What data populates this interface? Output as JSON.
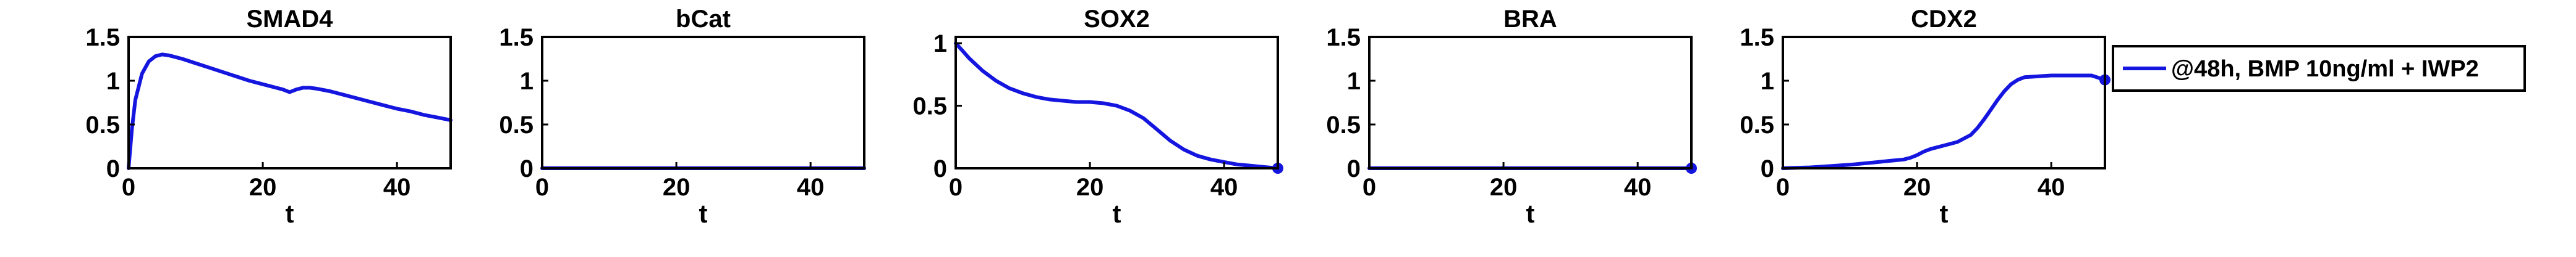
{
  "chart_data": {
    "type": "line",
    "legend": {
      "label": "@48h, BMP 10ng/ml + IWP2",
      "placement": "right",
      "color": "#1515e0"
    },
    "series_color": "#1515e0",
    "grid": false,
    "panels": [
      {
        "title": "SMAD4",
        "xlabel": "t",
        "xlim": [
          0,
          48
        ],
        "ylim": [
          0,
          1.5
        ],
        "xticks": [
          0,
          20,
          40
        ],
        "yticks": [
          0,
          0.5,
          1,
          1.5
        ],
        "x": [
          0,
          0.5,
          1,
          2,
          3,
          4,
          5,
          6,
          8,
          10,
          12,
          14,
          16,
          18,
          20,
          22,
          23,
          24,
          25,
          26,
          27,
          28,
          30,
          32,
          34,
          36,
          38,
          40,
          42,
          44,
          46,
          48
        ],
        "y": [
          0,
          0.45,
          0.78,
          1.08,
          1.22,
          1.28,
          1.3,
          1.29,
          1.25,
          1.2,
          1.15,
          1.1,
          1.05,
          1.0,
          0.96,
          0.92,
          0.9,
          0.87,
          0.9,
          0.92,
          0.92,
          0.91,
          0.88,
          0.84,
          0.8,
          0.76,
          0.72,
          0.68,
          0.65,
          0.61,
          0.58,
          0.55
        ],
        "endpoint_marker": false
      },
      {
        "title": "bCat",
        "xlabel": "t",
        "xlim": [
          0,
          48
        ],
        "ylim": [
          0,
          1.5
        ],
        "xticks": [
          0,
          20,
          40
        ],
        "yticks": [
          0,
          0.5,
          1,
          1.5
        ],
        "x": [
          0,
          48
        ],
        "y": [
          0,
          0
        ],
        "endpoint_marker": false
      },
      {
        "title": "SOX2",
        "xlabel": "t",
        "xlim": [
          0,
          48
        ],
        "ylim": [
          0,
          1.05
        ],
        "xticks": [
          0,
          20,
          40
        ],
        "yticks": [
          0,
          0.5,
          1
        ],
        "x": [
          0,
          1,
          2,
          4,
          6,
          8,
          10,
          12,
          14,
          16,
          18,
          20,
          22,
          24,
          26,
          28,
          30,
          32,
          34,
          36,
          38,
          40,
          42,
          44,
          46,
          48
        ],
        "y": [
          1.0,
          0.94,
          0.88,
          0.78,
          0.7,
          0.64,
          0.6,
          0.57,
          0.55,
          0.54,
          0.53,
          0.53,
          0.52,
          0.5,
          0.46,
          0.4,
          0.31,
          0.22,
          0.15,
          0.1,
          0.07,
          0.05,
          0.03,
          0.02,
          0.01,
          0.0
        ],
        "endpoint_marker": true
      },
      {
        "title": "BRA",
        "xlabel": "t",
        "xlim": [
          0,
          48
        ],
        "ylim": [
          0,
          1.5
        ],
        "xticks": [
          0,
          20,
          40
        ],
        "yticks": [
          0,
          0.5,
          1,
          1.5
        ],
        "x": [
          0,
          48
        ],
        "y": [
          0,
          0
        ],
        "endpoint_marker": true
      },
      {
        "title": "CDX2",
        "xlabel": "t",
        "xlim": [
          0,
          48
        ],
        "ylim": [
          0,
          1.5
        ],
        "xticks": [
          0,
          20,
          40
        ],
        "yticks": [
          0,
          0.5,
          1,
          1.5
        ],
        "x": [
          0,
          2,
          4,
          6,
          8,
          10,
          12,
          14,
          16,
          18,
          19,
          20,
          21,
          22,
          24,
          26,
          28,
          29,
          30,
          31,
          32,
          33,
          34,
          35,
          36,
          38,
          40,
          42,
          44,
          46,
          48
        ],
        "y": [
          0,
          0.005,
          0.01,
          0.02,
          0.03,
          0.04,
          0.055,
          0.07,
          0.085,
          0.1,
          0.12,
          0.15,
          0.19,
          0.22,
          0.26,
          0.3,
          0.38,
          0.46,
          0.56,
          0.67,
          0.78,
          0.88,
          0.96,
          1.01,
          1.04,
          1.05,
          1.06,
          1.06,
          1.06,
          1.06,
          1.01
        ],
        "endpoint_marker": true
      }
    ]
  }
}
